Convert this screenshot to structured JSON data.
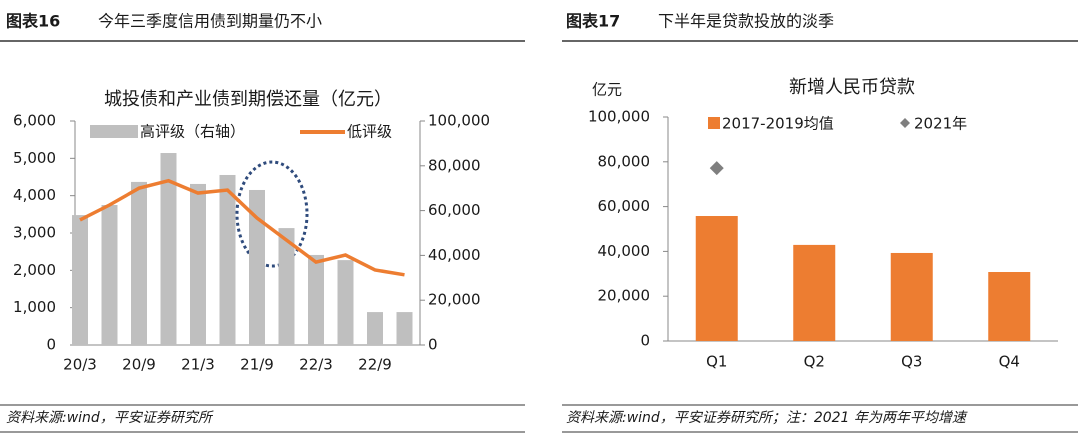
{
  "chart_data": [
    {
      "type": "combo",
      "figure_label": "图表16",
      "caption": "今年三季度信用债到期量仍不小",
      "title": "城投债和产业债到期偿还量（亿元）",
      "source": "资料来源:wind，平安证券研究所",
      "categories": [
        "20/3",
        null,
        "20/9",
        null,
        "21/3",
        null,
        "21/9",
        null,
        "22/3",
        null,
        "22/9",
        null
      ],
      "series": [
        {
          "name": "高评级（右轴）",
          "mark": "bar",
          "axis": "y2",
          "color": "#BFBFBF",
          "values": [
            58000,
            62500,
            72800,
            85700,
            71900,
            75900,
            69200,
            52200,
            40200,
            37900,
            14700,
            14700
          ]
        },
        {
          "name": "低评级",
          "mark": "line",
          "color": "#ED7D31",
          "values": [
            3350,
            3750,
            4200,
            4400,
            4070,
            4150,
            3400,
            2810,
            2220,
            2410,
            2010,
            1880
          ]
        }
      ],
      "ylim": [
        0,
        6000
      ],
      "yticks": [
        0,
        {
          "value": 1000,
          "label": "1,000"
        },
        {
          "value": 2000,
          "label": "2,000"
        },
        {
          "value": 3000,
          "label": "3,000"
        },
        {
          "value": 4000,
          "label": "4,000"
        },
        {
          "value": 5000,
          "label": "5,000"
        },
        {
          "value": 6000,
          "label": "6,000"
        }
      ],
      "y2lim": [
        0,
        100000
      ],
      "y2ticks": [
        0,
        {
          "value": 20000,
          "label": "20,000"
        },
        {
          "value": 40000,
          "label": "40,000"
        },
        {
          "value": 60000,
          "label": "60,000"
        },
        {
          "value": 80000,
          "label": "80,000"
        },
        {
          "value": 100000,
          "label": "100,000"
        }
      ],
      "grid": false
    },
    {
      "type": "bar",
      "figure_label": "图表17",
      "caption": "下半年是贷款投放的淡季",
      "title": "新增人民币贷款",
      "unit_label": "亿元",
      "source": "资料来源:wind，平安证券研究所；注：2021 年为两年平均增速",
      "categories": [
        "Q1",
        "Q2",
        "Q3",
        "Q4"
      ],
      "series": [
        {
          "name": "2017-2019均值",
          "mark": "bar",
          "color": "#ED7D31",
          "values": [
            55800,
            42900,
            39300,
            30800
          ]
        },
        {
          "name": "2021年",
          "mark": "diamond",
          "color": "#7F7F7F",
          "values": [
            77200,
            null,
            null,
            null
          ]
        }
      ],
      "ylim": [
        0,
        100000
      ],
      "yticks": [
        0,
        {
          "value": 20000,
          "label": "20,000"
        },
        {
          "value": 40000,
          "label": "40,000"
        },
        {
          "value": 60000,
          "label": "60,000"
        },
        {
          "value": 80000,
          "label": "80,000"
        },
        {
          "value": 100000,
          "label": "100,000"
        }
      ],
      "grid": false
    }
  ]
}
